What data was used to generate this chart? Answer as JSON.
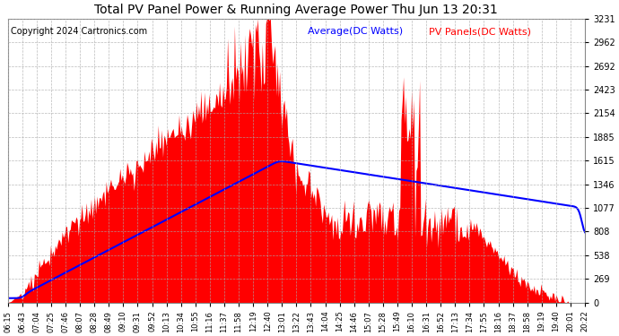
{
  "title": "Total PV Panel Power & Running Average Power Thu Jun 13 20:31",
  "copyright": "Copyright 2024 Cartronics.com",
  "legend_average": "Average(DC Watts)",
  "legend_pv": "PV Panels(DC Watts)",
  "background_color": "#ffffff",
  "plot_bg_color": "#ffffff",
  "title_color": "#000000",
  "copyright_color": "#000000",
  "grid_color": "#aaaaaa",
  "bar_color": "#ff0000",
  "line_color": "#0000ff",
  "legend_avg_color": "#0000ff",
  "legend_pv_color": "#ff0000",
  "ymax": 3230.8,
  "ymin": 0.0,
  "yticks": [
    0.0,
    269.2,
    538.5,
    807.7,
    1076.9,
    1346.2,
    1615.4,
    1884.6,
    2153.9,
    2423.1,
    2692.3,
    2961.6,
    3230.8
  ],
  "xtick_labels": [
    "06:15",
    "06:43",
    "07:04",
    "07:25",
    "07:46",
    "08:07",
    "08:28",
    "08:49",
    "09:10",
    "09:31",
    "09:52",
    "10:13",
    "10:34",
    "10:55",
    "11:16",
    "11:37",
    "11:58",
    "12:19",
    "12:40",
    "13:01",
    "13:22",
    "13:43",
    "14:04",
    "14:25",
    "14:46",
    "15:07",
    "15:28",
    "15:49",
    "16:10",
    "16:31",
    "16:52",
    "17:13",
    "17:34",
    "17:55",
    "18:16",
    "18:37",
    "18:58",
    "19:19",
    "19:40",
    "20:01",
    "20:22"
  ],
  "n_points": 500
}
